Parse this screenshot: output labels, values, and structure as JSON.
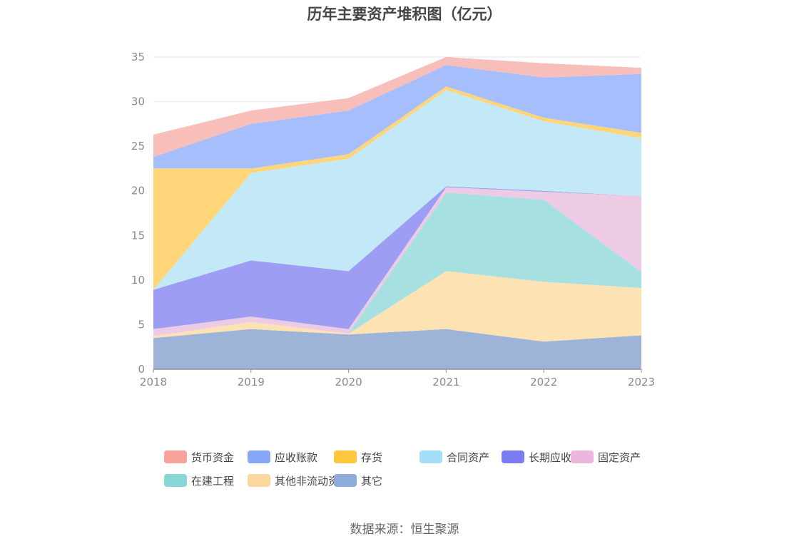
{
  "chart_data": {
    "type": "area",
    "stacked": true,
    "title": "历年主要资产堆积图（亿元）",
    "source": "数据来源：恒生聚源",
    "x": [
      "2018",
      "2019",
      "2020",
      "2021",
      "2022",
      "2023"
    ],
    "ylim": [
      0,
      35
    ],
    "yticks": [
      "0",
      "5",
      "10",
      "15",
      "20",
      "25",
      "30",
      "35"
    ],
    "grid": true,
    "legend_position": "bottom",
    "series": [
      {
        "name": "其它",
        "color": "#9eb3d8",
        "values": [
          3.5,
          4.5,
          3.9,
          4.5,
          3.1,
          3.8
        ]
      },
      {
        "name": "其他非流动资产",
        "color": "#fde2b3",
        "values": [
          0.2,
          0.8,
          0.1,
          6.5,
          6.7,
          5.3
        ]
      },
      {
        "name": "在建工程",
        "color": "#a7e0e1",
        "values": [
          0.0,
          0.0,
          0.0,
          8.8,
          9.2,
          1.8
        ]
      },
      {
        "name": "固定资产",
        "color": "#edcbe4",
        "values": [
          0.8,
          0.6,
          0.5,
          0.6,
          0.9,
          8.5
        ]
      },
      {
        "name": "长期应收款",
        "color": "#9c9df3",
        "values": [
          4.4,
          6.3,
          6.5,
          0.1,
          0.1,
          0.0
        ]
      },
      {
        "name": "合同资产",
        "color": "#c3e8f8",
        "values": [
          0.0,
          9.8,
          12.6,
          10.8,
          7.8,
          6.5
        ]
      },
      {
        "name": "存货",
        "color": "#fed679",
        "values": [
          13.6,
          0.5,
          0.5,
          0.4,
          0.4,
          0.6
        ]
      },
      {
        "name": "应收账款",
        "color": "#a6befc",
        "values": [
          1.3,
          5.0,
          4.9,
          2.4,
          4.5,
          6.6
        ]
      },
      {
        "name": "货币资金",
        "color": "#f8beba",
        "values": [
          2.5,
          1.5,
          1.4,
          0.9,
          1.6,
          0.7
        ]
      }
    ],
    "legend": [
      {
        "name": "货币资金",
        "color": "#f7a29a"
      },
      {
        "name": "应收账款",
        "color": "#88a6f7"
      },
      {
        "name": "存货",
        "color": "#fcc63d"
      },
      {
        "name": "合同资产",
        "color": "#a4ddf6"
      },
      {
        "name": "长期应收款",
        "color": "#7b7cf1"
      },
      {
        "name": "固定资产",
        "color": "#e9b8dc"
      },
      {
        "name": "在建工程",
        "color": "#88d7d8"
      },
      {
        "name": "其他非流动资产",
        "color": "#fdd89e"
      },
      {
        "name": "其它",
        "color": "#8eacd9"
      }
    ]
  }
}
